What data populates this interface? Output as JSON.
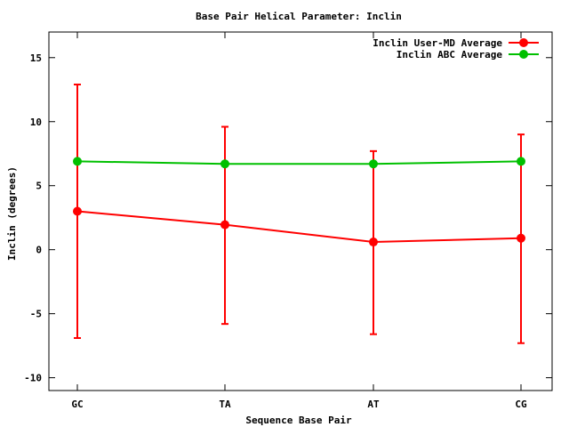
{
  "chart_data": {
    "type": "line",
    "title": "Base Pair Helical Parameter: Inclin",
    "xlabel": "Sequence Base Pair",
    "ylabel": "Inclin (degrees)",
    "categories": [
      "GC",
      "TA",
      "AT",
      "CG"
    ],
    "ylim": [
      -11,
      17
    ],
    "yticks": [
      -10,
      -5,
      0,
      5,
      10,
      15
    ],
    "grid": false,
    "legend_position": "top-right",
    "series": [
      {
        "name": "Inclin User-MD Average",
        "color": "#ff0000",
        "values": [
          3.0,
          1.95,
          0.6,
          0.9
        ],
        "error_low": [
          -6.9,
          -5.8,
          -6.6,
          -7.3
        ],
        "error_high": [
          12.9,
          9.6,
          7.7,
          9.0
        ]
      },
      {
        "name": "Inclin ABC Average",
        "color": "#00c000",
        "values": [
          6.9,
          6.7,
          6.7,
          6.9
        ]
      }
    ]
  }
}
